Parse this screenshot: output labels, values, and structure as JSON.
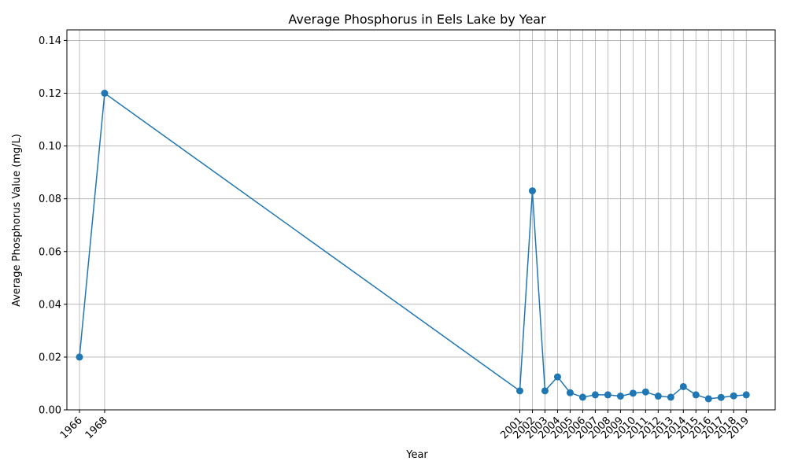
{
  "chart_data": {
    "type": "line",
    "title": "Average Phosphorus in Eels Lake by Year",
    "xlabel": "Year",
    "ylabel": "Average Phosphorus Value (mg/L)",
    "ylim": [
      0,
      0.144
    ],
    "yticks": [
      "0.00",
      "0.02",
      "0.04",
      "0.06",
      "0.08",
      "0.10",
      "0.12",
      "0.14"
    ],
    "xlim": [
      1965.0,
      2021.3
    ],
    "grid": true,
    "series": [
      {
        "color": "#1f77b4",
        "points": [
          {
            "x": 1966,
            "label": "1966",
            "y": 0.02
          },
          {
            "x": 1968,
            "label": "1968",
            "y": 0.12
          },
          {
            "x": 2001,
            "label": "2001",
            "y": 0.0072
          },
          {
            "x": 2002,
            "label": "2002",
            "y": 0.083
          },
          {
            "x": 2003,
            "label": "2003",
            "y": 0.0072
          },
          {
            "x": 2004,
            "label": "2004",
            "y": 0.0125
          },
          {
            "x": 2005,
            "label": "2005",
            "y": 0.0065
          },
          {
            "x": 2006,
            "label": "2006",
            "y": 0.0048
          },
          {
            "x": 2007,
            "label": "2007",
            "y": 0.0057
          },
          {
            "x": 2008,
            "label": "2008",
            "y": 0.0057
          },
          {
            "x": 2009,
            "label": "2009",
            "y": 0.0052
          },
          {
            "x": 2010,
            "label": "2010",
            "y": 0.0063
          },
          {
            "x": 2011,
            "label": "2011",
            "y": 0.0068
          },
          {
            "x": 2012,
            "label": "2012",
            "y": 0.0052
          },
          {
            "x": 2013,
            "label": "2013",
            "y": 0.0048
          },
          {
            "x": 2014,
            "label": "2014",
            "y": 0.0088
          },
          {
            "x": 2015,
            "label": "2015",
            "y": 0.0057
          },
          {
            "x": 2016,
            "label": "2016",
            "y": 0.0042
          },
          {
            "x": 2017,
            "label": "2017",
            "y": 0.0047
          },
          {
            "x": 2018,
            "label": "2018",
            "y": 0.0053
          },
          {
            "x": 2019,
            "label": "2019",
            "y": 0.0057
          }
        ]
      }
    ]
  }
}
